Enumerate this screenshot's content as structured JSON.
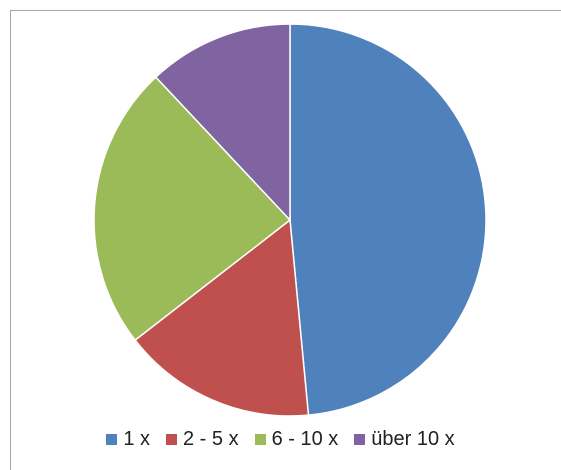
{
  "chart_data": {
    "type": "pie",
    "categories": [
      "1 x",
      "2 - 5 x",
      "6 - 10 x",
      "über 10 x"
    ],
    "values": [
      48.5,
      16.0,
      23.5,
      12.0
    ],
    "colors": [
      "#4f81bd",
      "#c0504d",
      "#9bbb59",
      "#8064a2"
    ],
    "start_angle": "12 o'clock",
    "direction": "clockwise",
    "legend_position": "bottom"
  }
}
